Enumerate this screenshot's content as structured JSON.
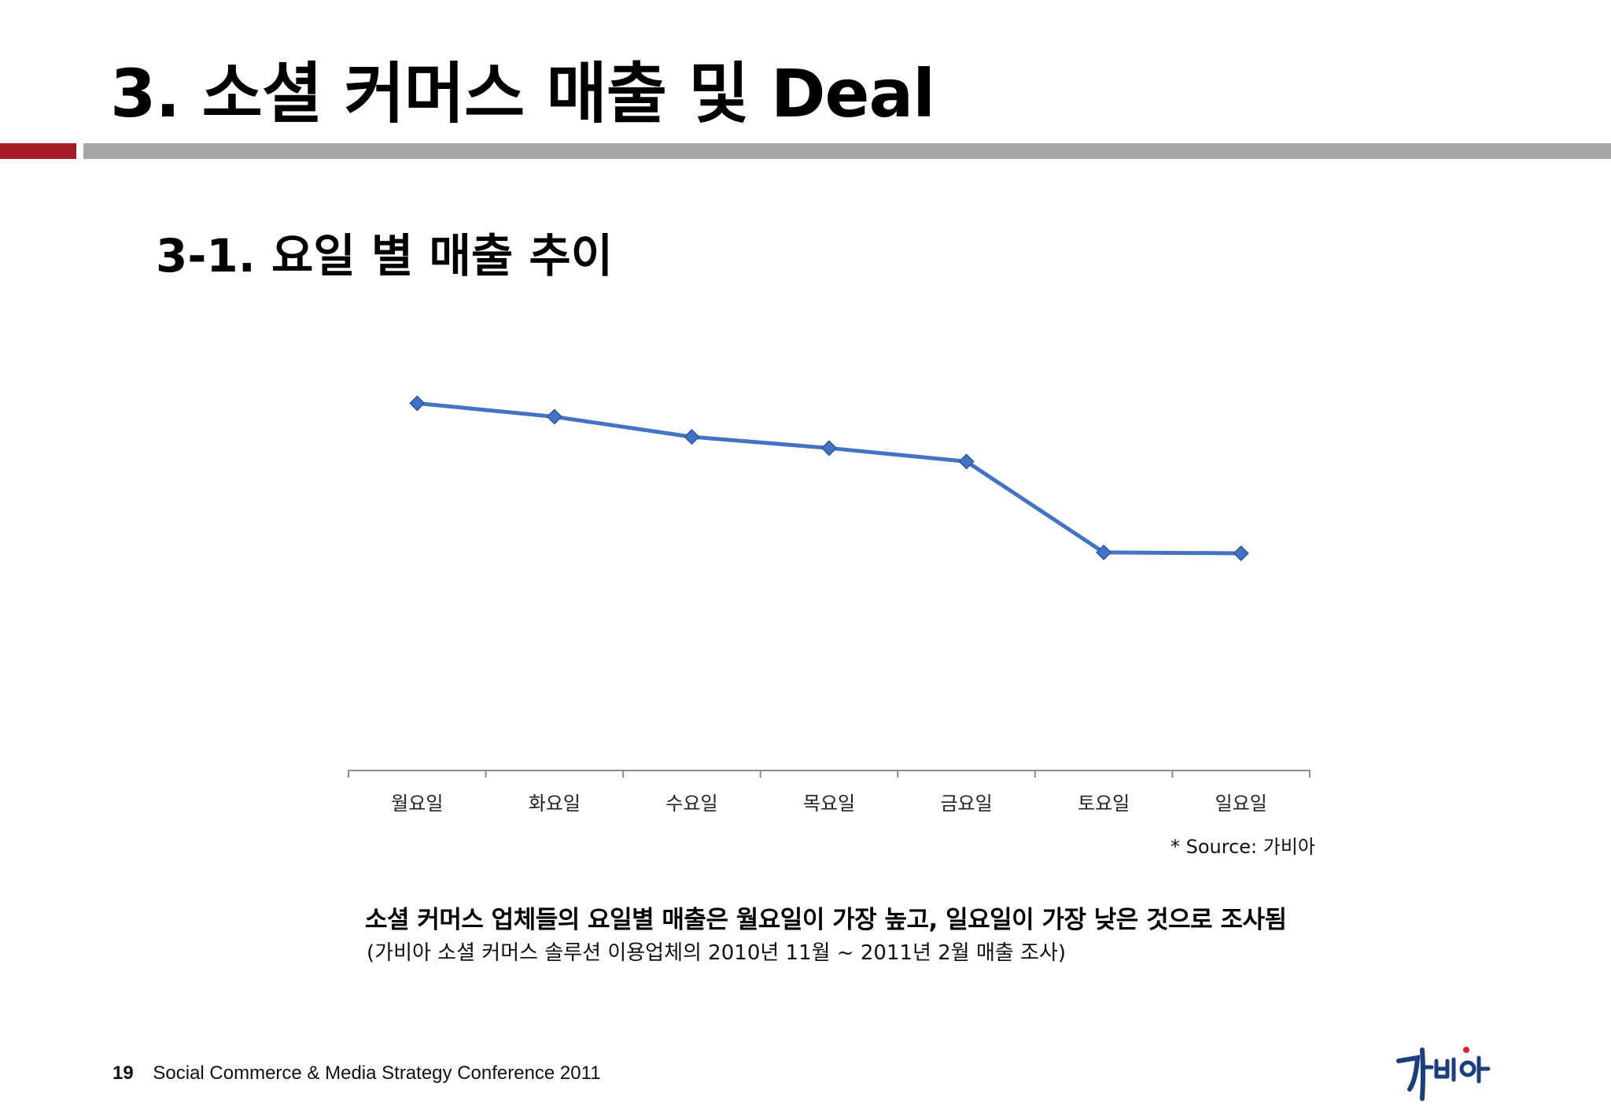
{
  "header": {
    "title": "3. 소셜 커머스 매출 및 Deal",
    "accent_color": "#a61c2b",
    "rule_color": "#a6a6a6"
  },
  "section": {
    "subtitle": "3-1. 요일 별 매출 추이"
  },
  "chart_data": {
    "type": "line",
    "title": "",
    "xlabel": "",
    "ylabel": "",
    "categories": [
      "월요일",
      "화요일",
      "수요일",
      "목요일",
      "금요일",
      "토요일",
      "일요일"
    ],
    "series": [
      {
        "values": [
          82,
          79,
          74.5,
          72,
          69,
          48.7,
          48.5
        ],
        "color": "#4472c4",
        "marker": "diamond"
      }
    ],
    "ylim": [
      0,
      100
    ],
    "y_axis_visible": false,
    "grid": false,
    "legend": "none",
    "source": "* Source: 가비아"
  },
  "finding": {
    "headline": "소셜 커머스 업체들의 요일별 매출은 월요일이 가장 높고, 일요일이 가장 낮은 것으로 조사됨",
    "note": "(가비아 소셜 커머스 솔루션 이용업체의 2010년 11월 ~ 2011년 2월 매출 조사)"
  },
  "footer": {
    "page_number": "19",
    "conference": "Social Commerce & Media Strategy Conference 2011",
    "logo_icon": "gabia-logo-icon"
  }
}
